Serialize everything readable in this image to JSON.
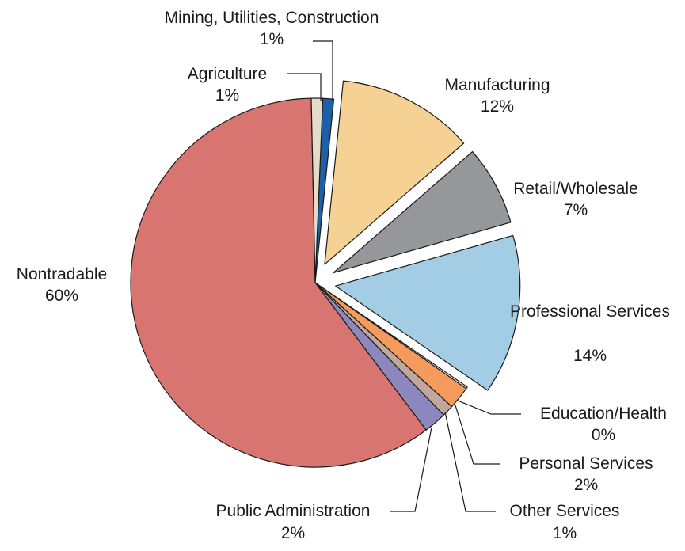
{
  "chart_data": {
    "type": "pie",
    "title": "",
    "slices": [
      {
        "label": "Mining, Utilities, Construction",
        "value_label": "1%",
        "value": 1,
        "color": "#1f5fa8",
        "exploded": false
      },
      {
        "label": "Manufacturing",
        "value_label": "12%",
        "value": 12,
        "color": "#f5d293",
        "exploded": true
      },
      {
        "label": "Retail/Wholesale",
        "value_label": "7%",
        "value": 7,
        "color": "#96979b",
        "exploded": true
      },
      {
        "label": "Professional Services",
        "value_label": "14%",
        "value": 14,
        "color": "#a3cde4",
        "exploded": true
      },
      {
        "label": "Education/Health",
        "value_label": "0%",
        "value": 0,
        "color": "#ffffff",
        "exploded": false
      },
      {
        "label": "Personal Services",
        "value_label": "2%",
        "value": 2,
        "color": "#f59a5d",
        "exploded": false
      },
      {
        "label": "Other Services",
        "value_label": "1%",
        "value": 1,
        "color": "#c2a89b",
        "exploded": false
      },
      {
        "label": "Public Administration",
        "value_label": "2%",
        "value": 2,
        "color": "#8c88bd",
        "exploded": false
      },
      {
        "label": "Nontradable",
        "value_label": "60%",
        "value": 60,
        "color": "#d97570",
        "exploded": false
      },
      {
        "label": "Agriculture",
        "value_label": "1%",
        "value": 1,
        "color": "#e5dcc8",
        "exploded": false
      }
    ]
  }
}
